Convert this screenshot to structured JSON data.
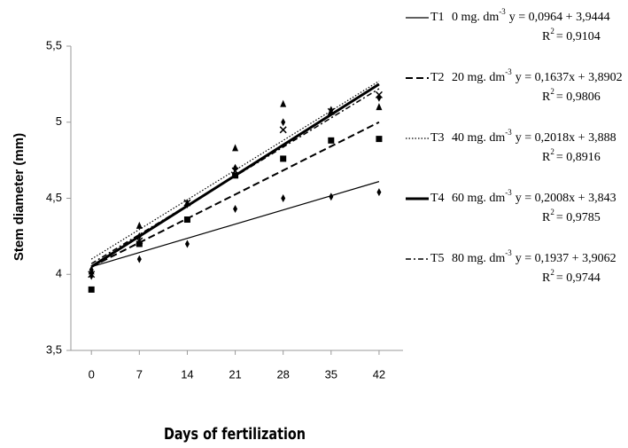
{
  "chart_data": {
    "type": "scatter",
    "xlabel": "Days of fertilization",
    "ylabel": "Stem diameter (mm)",
    "x": [
      0,
      7,
      14,
      21,
      28,
      35,
      42
    ],
    "xlim": [
      -3,
      45.5
    ],
    "xticks": [
      0,
      7,
      14,
      21,
      28,
      35,
      42
    ],
    "ylim": [
      3.5,
      5.5
    ],
    "yticks": [
      {
        "value": 3.5,
        "label": "3,5"
      },
      {
        "value": 4,
        "label": "4"
      },
      {
        "value": 4.5,
        "label": "4,5"
      },
      {
        "value": 5,
        "label": "5"
      },
      {
        "value": 5.5,
        "label": "5,5"
      }
    ],
    "grid": false,
    "legend": "right",
    "fit_x": [
      0,
      42
    ],
    "series": [
      {
        "name": "T1",
        "color": "#000000",
        "marker": "diamond",
        "dash": "solid",
        "linewidth": 1.2,
        "values": [
          3.99,
          4.1,
          4.2,
          4.43,
          4.5,
          4.51,
          4.54
        ],
        "fit": [
          4.05,
          4.61
        ],
        "dose": "0 mg. dm",
        "dose_exp": "-3",
        "equation": "y = 0,0964 + 3,9444",
        "r2_label": "R",
        "r2_exp": "2",
        "r2_value": "= 0,9104"
      },
      {
        "name": "T2",
        "color": "#000000",
        "marker": "square",
        "dash": "dashed",
        "linewidth": 2,
        "values": [
          3.9,
          4.2,
          4.36,
          4.65,
          4.76,
          4.88,
          4.89
        ],
        "fit": [
          4.05,
          5.0
        ],
        "dose": "20 mg. dm",
        "dose_exp": "-3",
        "equation": "y = 0,1637x + 3,8902",
        "r2_label": "R",
        "r2_exp": "2",
        "r2_value": "= 0,9806"
      },
      {
        "name": "T3",
        "color": "#000000",
        "marker": "triangle",
        "dash": "dotted",
        "linewidth": 1.2,
        "values": [
          4.02,
          4.32,
          4.47,
          4.83,
          5.12,
          5.07,
          5.1
        ],
        "fit": [
          4.1,
          5.27
        ],
        "dose": "40 mg. dm",
        "dose_exp": "-3",
        "equation": "y = 0,2018x + 3,888",
        "r2_label": "R",
        "r2_exp": "2",
        "r2_value": "= 0,8916"
      },
      {
        "name": "T4",
        "color": "#000000",
        "marker": "diamond",
        "dash": "solid",
        "linewidth": 3,
        "values": [
          4.03,
          4.25,
          4.46,
          4.7,
          5.0,
          5.08,
          5.16
        ],
        "fit": [
          4.05,
          5.25
        ],
        "dose": "60 mg. dm",
        "dose_exp": "-3",
        "equation": "y = 0,2008x + 3,843",
        "r2_label": "R",
        "r2_exp": "2",
        "r2_value": "= 0,9785"
      },
      {
        "name": "T5",
        "color": "#000000",
        "marker": "x",
        "dash": "dashdot",
        "linewidth": 1.5,
        "values": [
          4.0,
          4.22,
          4.47,
          4.68,
          4.95,
          5.07,
          5.18
        ],
        "fit": [
          4.07,
          5.22
        ],
        "dose": "80 mg. dm",
        "dose_exp": "-3",
        "equation": "y = 0,1937 + 3,9062",
        "r2_label": "R",
        "r2_exp": "2",
        "r2_value": "= 0,9744"
      }
    ]
  }
}
